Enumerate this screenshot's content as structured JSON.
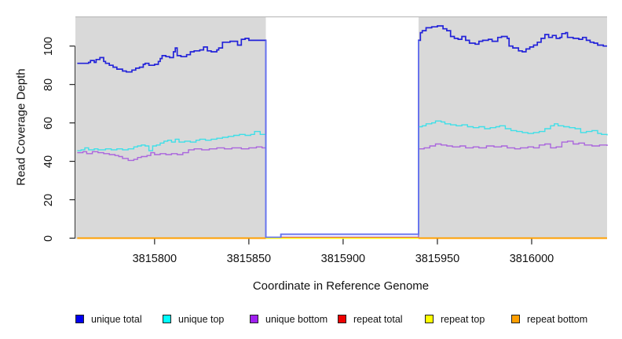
{
  "chart_data": {
    "type": "line",
    "subtype": "step",
    "xlabel": "Coordinate in Reference Genome",
    "ylabel": "Read Coverage Depth",
    "xlim": [
      3815758,
      3816040
    ],
    "ylim": [
      0,
      115.4
    ],
    "x_ticks": [
      3815800,
      3815850,
      3815900,
      3815950,
      3816000
    ],
    "y_ticks": [
      0,
      20,
      40,
      60,
      80,
      100
    ],
    "grid": false,
    "legend_position": "bottom",
    "plot_background": "#d9d9d9",
    "gap_region": {
      "x_start": 3815859,
      "x_end": 3815940,
      "fill": "#ffffff"
    },
    "series": [
      {
        "name": "unique total",
        "color": "#2323d9",
        "legend_color": "#0000ee",
        "width": 1.7,
        "segments": [
          [
            [
              3815759,
              91
            ],
            [
              3815765,
              91.5
            ],
            [
              3815766,
              92.5
            ],
            [
              3815768,
              91.5
            ],
            [
              3815769,
              93
            ],
            [
              3815771,
              94
            ],
            [
              3815773,
              92
            ],
            [
              3815774,
              91
            ],
            [
              3815776,
              90
            ],
            [
              3815778,
              89
            ],
            [
              3815780,
              88
            ],
            [
              3815783,
              87
            ],
            [
              3815785,
              86.5
            ],
            [
              3815788,
              87.5
            ],
            [
              3815790,
              88.5
            ],
            [
              3815792,
              89
            ],
            [
              3815794,
              90.5
            ],
            [
              3815795,
              91
            ],
            [
              3815797,
              90
            ],
            [
              3815800,
              90.5
            ],
            [
              3815802,
              92
            ],
            [
              3815803,
              93.5
            ],
            [
              3815804,
              95
            ],
            [
              3815806,
              94.5
            ],
            [
              3815808,
              94
            ],
            [
              3815810,
              97
            ],
            [
              3815811,
              99
            ],
            [
              3815812,
              95
            ],
            [
              3815814,
              94.5
            ],
            [
              3815817,
              95.5
            ],
            [
              3815819,
              97
            ],
            [
              3815821,
              97.5
            ],
            [
              3815824,
              98
            ],
            [
              3815826,
              99.5
            ],
            [
              3815828,
              97.5
            ],
            [
              3815830,
              97
            ],
            [
              3815833,
              98
            ],
            [
              3815834,
              99
            ],
            [
              3815836,
              102
            ],
            [
              3815840,
              102.5
            ],
            [
              3815844,
              100.5
            ],
            [
              3815846,
              103.5
            ],
            [
              3815848,
              104
            ],
            [
              3815850,
              103
            ],
            [
              3815859,
              0.5
            ],
            [
              3815867,
              2
            ],
            [
              3815940,
              103
            ],
            [
              3815941,
              107
            ],
            [
              3815942,
              108
            ],
            [
              3815944,
              109.5
            ],
            [
              3815947,
              110
            ],
            [
              3815950,
              110.5
            ],
            [
              3815953,
              109
            ],
            [
              3815955,
              108
            ],
            [
              3815957,
              105
            ],
            [
              3815959,
              104
            ],
            [
              3815961,
              103.5
            ],
            [
              3815963,
              105
            ],
            [
              3815965,
              103
            ],
            [
              3815967,
              101.5
            ],
            [
              3815970,
              101
            ],
            [
              3815972,
              102.5
            ],
            [
              3815974,
              103
            ],
            [
              3815977,
              103.5
            ],
            [
              3815979,
              102.5
            ],
            [
              3815982,
              104.5
            ],
            [
              3815984,
              105
            ],
            [
              3815987,
              104
            ],
            [
              3815988,
              100
            ],
            [
              3815990,
              99
            ],
            [
              3815993,
              97.5
            ],
            [
              3815995,
              97
            ],
            [
              3815997,
              98.5
            ],
            [
              3815999,
              99.5
            ],
            [
              3816001,
              100.5
            ],
            [
              3816003,
              102
            ],
            [
              3816005,
              104
            ],
            [
              3816007,
              106
            ],
            [
              3816009,
              104.5
            ],
            [
              3816011,
              105.5
            ],
            [
              3816013,
              104
            ],
            [
              3816015,
              104.5
            ],
            [
              3816016,
              106.5
            ],
            [
              3816018,
              107
            ],
            [
              3816019,
              104.5
            ],
            [
              3816022,
              104
            ],
            [
              3816025,
              103.5
            ],
            [
              3816027,
              104.5
            ],
            [
              3816029,
              103
            ],
            [
              3816031,
              102
            ],
            [
              3816033,
              101.5
            ],
            [
              3816035,
              100.5
            ],
            [
              3816038,
              100
            ],
            [
              3816040,
              100
            ]
          ]
        ]
      },
      {
        "name": "unique top",
        "color": "#3fdfe8",
        "legend_color": "#00ffff",
        "width": 1.4,
        "segments": [
          [
            [
              3815759,
              45.5
            ],
            [
              3815761,
              46
            ],
            [
              3815763,
              47
            ],
            [
              3815765,
              46
            ],
            [
              3815768,
              46.5
            ],
            [
              3815770,
              46
            ],
            [
              3815774,
              46.5
            ],
            [
              3815777,
              46
            ],
            [
              3815780,
              46.5
            ],
            [
              3815783,
              46
            ],
            [
              3815786,
              46.5
            ],
            [
              3815789,
              47.5
            ],
            [
              3815791,
              48
            ],
            [
              3815793,
              48.5
            ],
            [
              3815795,
              48
            ],
            [
              3815797,
              45.5
            ],
            [
              3815799,
              48
            ],
            [
              3815801,
              48.5
            ],
            [
              3815803,
              49.5
            ],
            [
              3815805,
              50.5
            ],
            [
              3815807,
              51
            ],
            [
              3815809,
              50
            ],
            [
              3815811,
              51.5
            ],
            [
              3815813,
              50
            ],
            [
              3815816,
              50.5
            ],
            [
              3815819,
              50
            ],
            [
              3815822,
              51
            ],
            [
              3815824,
              51.5
            ],
            [
              3815827,
              51
            ],
            [
              3815830,
              51.5
            ],
            [
              3815833,
              52
            ],
            [
              3815836,
              52.5
            ],
            [
              3815839,
              53
            ],
            [
              3815842,
              53.5
            ],
            [
              3815845,
              54
            ],
            [
              3815848,
              53.5
            ],
            [
              3815851,
              54
            ],
            [
              3815853,
              55.5
            ],
            [
              3815856,
              54
            ],
            [
              3815859,
              0.5
            ],
            [
              3815940,
              58
            ],
            [
              3815942,
              58.5
            ],
            [
              3815944,
              59.5
            ],
            [
              3815947,
              60
            ],
            [
              3815949,
              61
            ],
            [
              3815952,
              60.5
            ],
            [
              3815954,
              59.5
            ],
            [
              3815957,
              59
            ],
            [
              3815960,
              58.5
            ],
            [
              3815963,
              59
            ],
            [
              3815966,
              58
            ],
            [
              3815969,
              57.5
            ],
            [
              3815972,
              58
            ],
            [
              3815975,
              57
            ],
            [
              3815978,
              57.5
            ],
            [
              3815981,
              58
            ],
            [
              3815983,
              58.5
            ],
            [
              3815986,
              57
            ],
            [
              3815989,
              56
            ],
            [
              3815992,
              55.5
            ],
            [
              3815995,
              55
            ],
            [
              3815998,
              54.5
            ],
            [
              3816001,
              55
            ],
            [
              3816004,
              55.5
            ],
            [
              3816007,
              57
            ],
            [
              3816010,
              58.5
            ],
            [
              3816012,
              59.5
            ],
            [
              3816014,
              58.5
            ],
            [
              3816017,
              58
            ],
            [
              3816020,
              57.5
            ],
            [
              3816023,
              57
            ],
            [
              3816026,
              55
            ],
            [
              3816029,
              55.5
            ],
            [
              3816032,
              56
            ],
            [
              3816035,
              54.5
            ],
            [
              3816037,
              54
            ],
            [
              3816040,
              53.5
            ]
          ]
        ]
      },
      {
        "name": "unique bottom",
        "color": "#aa66dd",
        "legend_color": "#a020f0",
        "width": 1.4,
        "segments": [
          [
            [
              3815759,
              44.5
            ],
            [
              3815762,
              45
            ],
            [
              3815764,
              44
            ],
            [
              3815767,
              45
            ],
            [
              3815770,
              44.5
            ],
            [
              3815773,
              44
            ],
            [
              3815776,
              43.5
            ],
            [
              3815779,
              43
            ],
            [
              3815781,
              42.5
            ],
            [
              3815783,
              41.5
            ],
            [
              3815786,
              40.5
            ],
            [
              3815789,
              41
            ],
            [
              3815791,
              42
            ],
            [
              3815793,
              42.5
            ],
            [
              3815796,
              43
            ],
            [
              3815798,
              44.5
            ],
            [
              3815800,
              43.5
            ],
            [
              3815803,
              44
            ],
            [
              3815806,
              43.5
            ],
            [
              3815809,
              44
            ],
            [
              3815812,
              43.5
            ],
            [
              3815815,
              44.5
            ],
            [
              3815818,
              46
            ],
            [
              3815821,
              46.5
            ],
            [
              3815825,
              46
            ],
            [
              3815829,
              46.5
            ],
            [
              3815833,
              47
            ],
            [
              3815837,
              46.5
            ],
            [
              3815841,
              47
            ],
            [
              3815846,
              46.5
            ],
            [
              3815850,
              47
            ],
            [
              3815854,
              47.5
            ],
            [
              3815857,
              47
            ],
            [
              3815859,
              0.5
            ],
            [
              3815940,
              46.5
            ],
            [
              3815943,
              47
            ],
            [
              3815946,
              48
            ],
            [
              3815949,
              49
            ],
            [
              3815952,
              48.5
            ],
            [
              3815955,
              48
            ],
            [
              3815958,
              47.5
            ],
            [
              3815962,
              48
            ],
            [
              3815965,
              47
            ],
            [
              3815969,
              47.5
            ],
            [
              3815972,
              47
            ],
            [
              3815976,
              48
            ],
            [
              3815980,
              47.5
            ],
            [
              3815984,
              48
            ],
            [
              3815987,
              47
            ],
            [
              3815991,
              46.5
            ],
            [
              3815994,
              47
            ],
            [
              3815998,
              47.5
            ],
            [
              3816001,
              47
            ],
            [
              3816004,
              48.5
            ],
            [
              3816007,
              49
            ],
            [
              3816010,
              47
            ],
            [
              3816013,
              47.5
            ],
            [
              3816016,
              50
            ],
            [
              3816019,
              50.5
            ],
            [
              3816022,
              49
            ],
            [
              3816025,
              49.5
            ],
            [
              3816028,
              48.5
            ],
            [
              3816032,
              48
            ],
            [
              3816036,
              48.5
            ],
            [
              3816040,
              48
            ]
          ]
        ]
      },
      {
        "name": "repeat total",
        "color": "#e0485a",
        "legend_color": "#ee0000",
        "width": 1.3,
        "segments": [
          [
            [
              3815859,
              0.4
            ],
            [
              3815940,
              0.4
            ]
          ]
        ]
      },
      {
        "name": "repeat top",
        "color": "#ffff00",
        "legend_color": "#ffff00",
        "width": 1.5,
        "segments": [
          [
            [
              3815759,
              0
            ],
            [
              3816040,
              0
            ]
          ]
        ]
      },
      {
        "name": "repeat bottom",
        "color": "#ff9f00",
        "legend_color": "#ff9f00",
        "width": 2,
        "segments": [
          [
            [
              3815759,
              0
            ],
            [
              3815859,
              0
            ]
          ],
          [
            [
              3815940,
              0
            ],
            [
              3816040,
              0
            ]
          ]
        ]
      }
    ],
    "overlays": [
      {
        "name": "gap-low-coverage-overlay",
        "color": "#6673f0",
        "width": 1.7,
        "mode": "polyline",
        "points": [
          [
            3815859,
            103
          ],
          [
            3815859,
            0.5
          ],
          [
            3815867,
            0.5
          ],
          [
            3815867,
            2
          ],
          [
            3815940,
            2
          ],
          [
            3815940,
            103
          ]
        ]
      }
    ]
  },
  "legend": {
    "items": [
      {
        "label": "unique total",
        "color": "#0000ee"
      },
      {
        "label": "unique top",
        "color": "#00ffff"
      },
      {
        "label": "unique bottom",
        "color": "#a020f0"
      },
      {
        "label": "repeat total",
        "color": "#ee0000"
      },
      {
        "label": "repeat top",
        "color": "#ffff00"
      },
      {
        "label": "repeat bottom",
        "color": "#ff9f00"
      }
    ]
  }
}
